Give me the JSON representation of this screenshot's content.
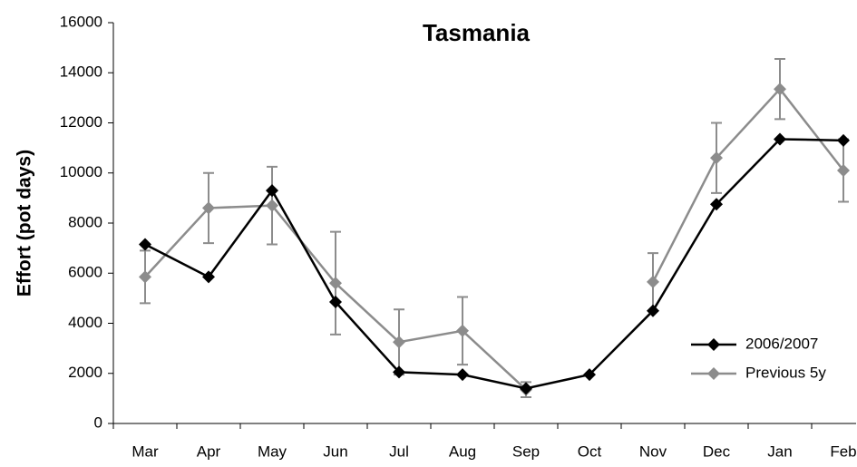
{
  "chart_data": {
    "type": "line",
    "title": "Tasmania",
    "y_label": "Effort (pot days)",
    "categories": [
      "Mar",
      "Apr",
      "May",
      "Jun",
      "Jul",
      "Aug",
      "Sep",
      "Oct",
      "Nov",
      "Dec",
      "Jan",
      "Feb"
    ],
    "series": [
      {
        "name": "Previous 5y",
        "color": "#8c8c8c",
        "values": [
          5850,
          8600,
          8700,
          5600,
          3250,
          3700,
          1350,
          null,
          5650,
          10600,
          13350,
          10100
        ],
        "errors": [
          1050,
          1400,
          1550,
          2050,
          1300,
          1350,
          300,
          null,
          1150,
          1400,
          1200,
          1250
        ]
      },
      {
        "name": "2006/2007",
        "color": "#000000",
        "values": [
          7150,
          5850,
          9300,
          4850,
          2050,
          1950,
          1400,
          1950,
          4500,
          8750,
          11350,
          11300
        ]
      }
    ],
    "ylim": [
      0,
      16000
    ],
    "yticks": [
      0,
      2000,
      4000,
      6000,
      8000,
      10000,
      12000,
      14000,
      16000
    ],
    "legend": "lower right"
  }
}
